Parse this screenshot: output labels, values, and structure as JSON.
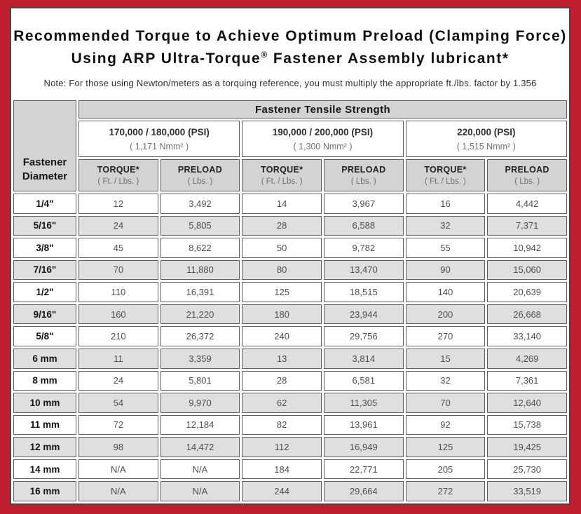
{
  "title": {
    "line1": "Recommended Torque to Achieve Optimum Preload (Clamping Force)",
    "line2_before": "Using ARP Ultra-Torque",
    "line2_reg": "®",
    "line2_after": " Fastener Assembly lubricant*",
    "note": "Note: For those using Newton/meters as a torquing reference, you must multiply the appropriate ft./lbs. factor by 1.356"
  },
  "table": {
    "tensile_header": "Fastener Tensile Strength",
    "diameter_header_line1": "Fastener",
    "diameter_header_line2": "Diameter",
    "strength_groups": [
      {
        "psi": "170,000 / 180,000 (PSI)",
        "nmm": "( 1,171 Nmm² )"
      },
      {
        "psi": "190,000 / 200,000 (PSI)",
        "nmm": "( 1,300 Nmm² )"
      },
      {
        "psi": "220,000 (PSI)",
        "nmm": "( 1,515 Nmm² )"
      }
    ],
    "sub_headers": [
      {
        "title": "TORQUE*",
        "unit": "( Ft. / Lbs. )"
      },
      {
        "title": "PRELOAD",
        "unit": "( Lbs. )"
      },
      {
        "title": "TORQUE*",
        "unit": "( Ft. / Lbs. )"
      },
      {
        "title": "PRELOAD",
        "unit": "( Lbs. )"
      },
      {
        "title": "TORQUE*",
        "unit": "( Ft. / Lbs. )"
      },
      {
        "title": "PRELOAD",
        "unit": "( Lbs. )"
      }
    ],
    "rows": [
      {
        "d": "1/4\"",
        "v": [
          "12",
          "3,492",
          "14",
          "3,967",
          "16",
          "4,442"
        ]
      },
      {
        "d": "5/16\"",
        "v": [
          "24",
          "5,805",
          "28",
          "6,588",
          "32",
          "7,371"
        ]
      },
      {
        "d": "3/8\"",
        "v": [
          "45",
          "8,622",
          "50",
          "9,782",
          "55",
          "10,942"
        ]
      },
      {
        "d": "7/16\"",
        "v": [
          "70",
          "11,880",
          "80",
          "13,470",
          "90",
          "15,060"
        ]
      },
      {
        "d": "1/2\"",
        "v": [
          "110",
          "16,391",
          "125",
          "18,515",
          "140",
          "20,639"
        ]
      },
      {
        "d": "9/16\"",
        "v": [
          "160",
          "21,220",
          "180",
          "23,944",
          "200",
          "26,668"
        ]
      },
      {
        "d": "5/8\"",
        "v": [
          "210",
          "26,372",
          "240",
          "29,756",
          "270",
          "33,140"
        ]
      },
      {
        "d": "6 mm",
        "v": [
          "11",
          "3,359",
          "13",
          "3,814",
          "15",
          "4,269"
        ]
      },
      {
        "d": "8 mm",
        "v": [
          "24",
          "5,801",
          "28",
          "6,581",
          "32",
          "7,361"
        ]
      },
      {
        "d": "10 mm",
        "v": [
          "54",
          "9,970",
          "62",
          "11,305",
          "70",
          "12,640"
        ]
      },
      {
        "d": "11 mm",
        "v": [
          "72",
          "12,184",
          "82",
          "13,961",
          "92",
          "15,738"
        ]
      },
      {
        "d": "12 mm",
        "v": [
          "98",
          "14,472",
          "112",
          "16,949",
          "125",
          "19,425"
        ]
      },
      {
        "d": "14 mm",
        "v": [
          "N/A",
          "N/A",
          "184",
          "22,771",
          "205",
          "25,730"
        ]
      },
      {
        "d": "16 mm",
        "v": [
          "N/A",
          "N/A",
          "244",
          "29,664",
          "272",
          "33,519"
        ]
      }
    ]
  },
  "colors": {
    "frame_red": "#bf1e2d",
    "header_gray": "#d3d3d3",
    "stripe_gray": "#dfdfdf",
    "cell_border": "#5f5f5f"
  }
}
